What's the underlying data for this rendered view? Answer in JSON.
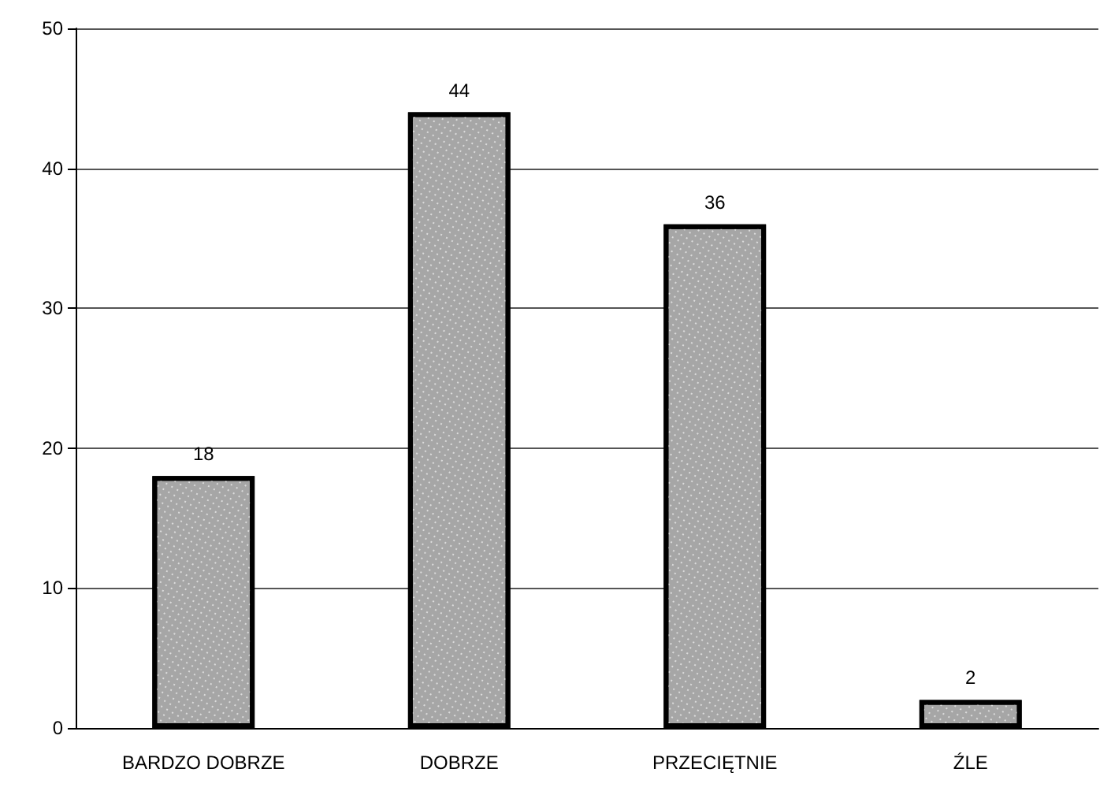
{
  "chart_data": {
    "type": "bar",
    "categories": [
      "BARDZO DOBRZE",
      "DOBRZE",
      "PRZECIĘTNIE",
      "ŹLE"
    ],
    "values": [
      18,
      44,
      36,
      2
    ],
    "color": "#a6a6a6",
    "ylim": [
      0,
      50
    ],
    "yticks": [
      0,
      10,
      20,
      30,
      40,
      50
    ],
    "grid": "y",
    "data_labels": true
  }
}
